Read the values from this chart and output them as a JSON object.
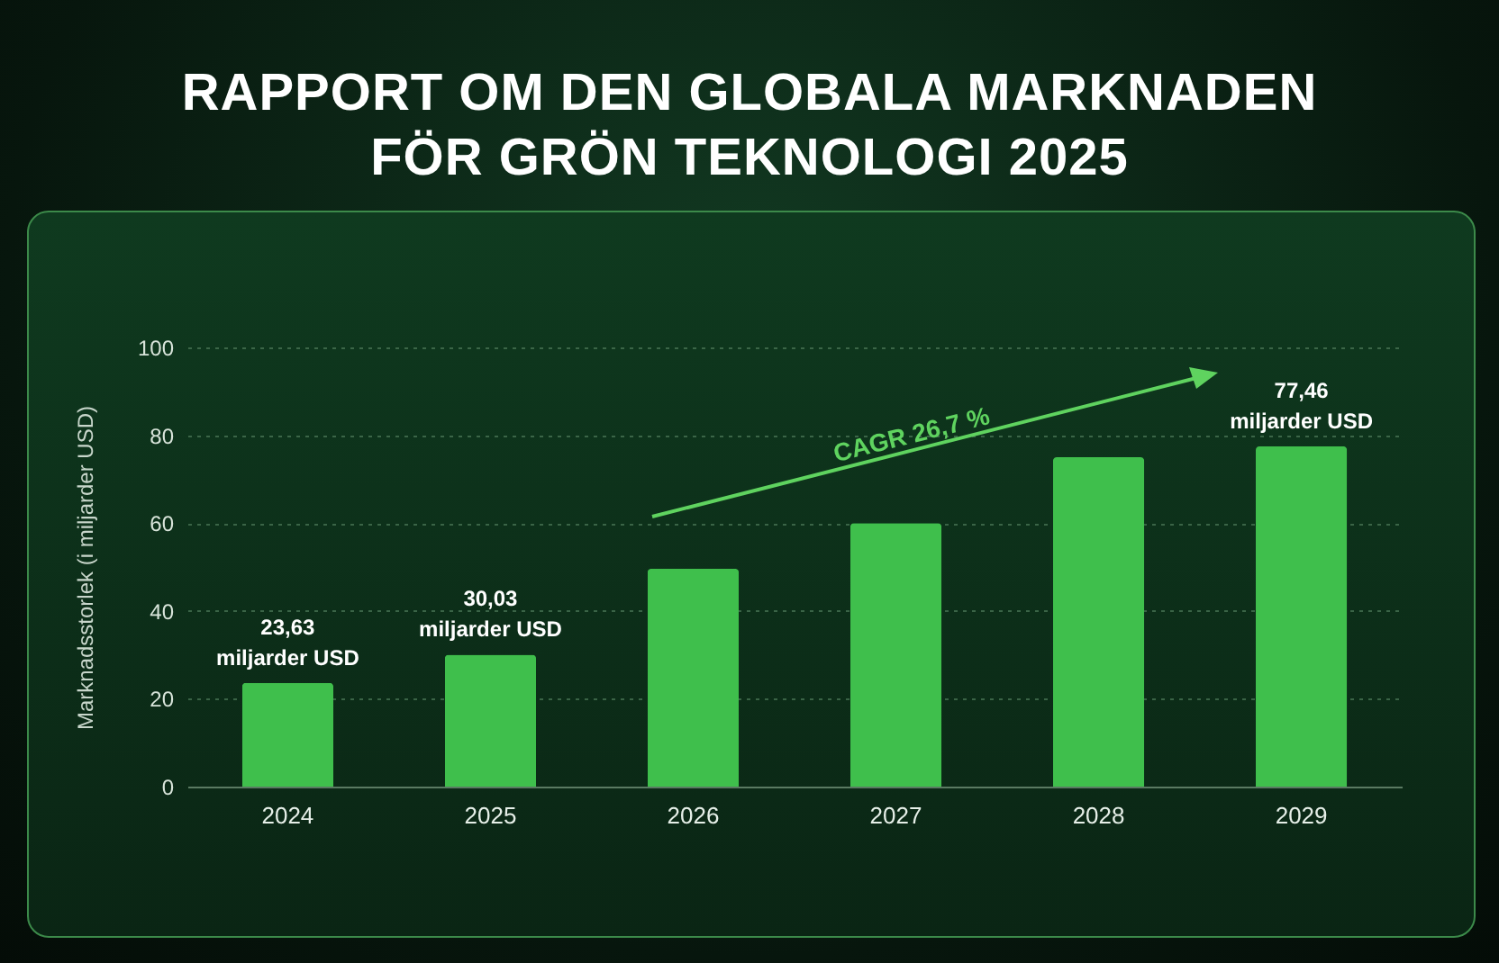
{
  "chart_data": {
    "type": "bar",
    "title": "RAPPORT OM DEN GLOBALA MARKNADEN FÖR GRÖN TEKNOLOGI 2025",
    "ylabel": "Marknadsstorlek (i miljarder USD)",
    "categories": [
      "2024",
      "2025",
      "2026",
      "2027",
      "2028",
      "2029"
    ],
    "values": [
      23.63,
      30.03,
      49.6,
      60,
      75,
      77.46
    ],
    "value_labels": [
      "23,63\nmiljarder USD",
      "30,03\nmiljarder USD",
      null,
      null,
      null,
      "77,46\nmiljarder USD"
    ],
    "color": "#3fbf4c",
    "ylim": [
      0,
      100
    ],
    "yticks": [
      0,
      20,
      40,
      60,
      80,
      100
    ],
    "grid": "y",
    "annotations": [
      "CAGR 26,7 %"
    ]
  }
}
